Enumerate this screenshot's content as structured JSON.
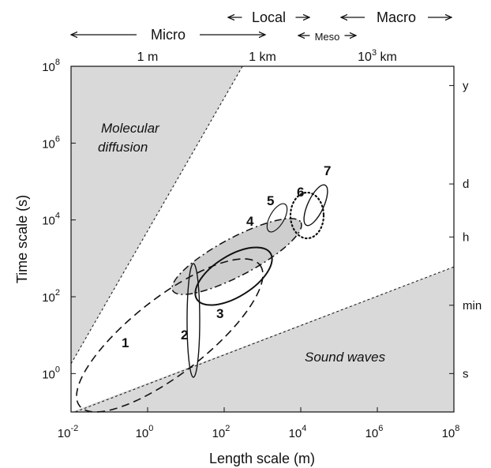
{
  "chart_data": {
    "type": "scatter",
    "xlabel": "Length scale (m)",
    "ylabel": "Time scale (s)",
    "xscale": "log",
    "yscale": "log",
    "xlim": [
      0.01,
      100000000
    ],
    "ylim": [
      0.1,
      100000000
    ],
    "x_ticks": [
      {
        "base": "10",
        "exp": "-2"
      },
      {
        "base": "10",
        "exp": "0"
      },
      {
        "base": "10",
        "exp": "2"
      },
      {
        "base": "10",
        "exp": "4"
      },
      {
        "base": "10",
        "exp": "6"
      },
      {
        "base": "10",
        "exp": "8"
      }
    ],
    "y_ticks": [
      {
        "base": "10",
        "exp": "0"
      },
      {
        "base": "10",
        "exp": "2"
      },
      {
        "base": "10",
        "exp": "4"
      },
      {
        "base": "10",
        "exp": "6"
      },
      {
        "base": "10",
        "exp": "8"
      }
    ],
    "right_ticks": [
      {
        "label": "y",
        "seconds": 31536000
      },
      {
        "label": "d",
        "seconds": 86400
      },
      {
        "label": "h",
        "seconds": 3600
      },
      {
        "label": "min",
        "seconds": 60
      },
      {
        "label": "s",
        "seconds": 1
      }
    ],
    "top_length_labels": [
      {
        "label": "1 m",
        "x": 1
      },
      {
        "label": "1 km",
        "x": 1000
      },
      {
        "label": "10",
        "sup": "3",
        "suffix": " km",
        "x": 1000000
      }
    ],
    "scale_ranges": [
      {
        "label": "Micro",
        "x_from": 0.01,
        "x_to": 2000
      },
      {
        "label": "Local",
        "x_from": 100,
        "x_to": 10000
      },
      {
        "label": "Meso",
        "x_from": 10000,
        "x_to": 100000
      },
      {
        "label": "Macro",
        "x_from": 100000,
        "x_to": 100000000
      }
    ],
    "regions": [
      {
        "label": "Molecular diffusion",
        "boundary": [
          [
            0.01,
            1.8
          ],
          [
            300,
            100000000
          ]
        ]
      },
      {
        "label": "Sound waves",
        "boundary": [
          [
            0.01,
            0.0
          ],
          [
            100000000,
            600
          ]
        ]
      }
    ],
    "phenomena": [
      {
        "label": "1",
        "style": "dashed",
        "x_range": [
          0.03,
          2000
        ],
        "y_range": [
          0.1,
          2000
        ]
      },
      {
        "label": "2",
        "style": "solid",
        "x_range": [
          10,
          15
        ],
        "y_range": [
          0.6,
          1000
        ]
      },
      {
        "label": "3",
        "style": "solid",
        "x_range": [
          15,
          3000
        ],
        "y_range": [
          70,
          2000
        ]
      },
      {
        "label": "4",
        "style": "dash-dot",
        "x_range": [
          10,
          5000
        ],
        "y_range": [
          80,
          10000
        ]
      },
      {
        "label": "5",
        "style": "solid",
        "x_range": [
          1500,
          3500
        ],
        "y_range": [
          4000,
          25000
        ]
      },
      {
        "label": "6",
        "style": "dotted",
        "x_range": [
          4000,
          20000
        ],
        "y_range": [
          1000,
          50000
        ]
      },
      {
        "label": "7",
        "style": "solid",
        "x_range": [
          15000,
          50000
        ],
        "y_range": [
          8000,
          100000
        ]
      }
    ]
  }
}
